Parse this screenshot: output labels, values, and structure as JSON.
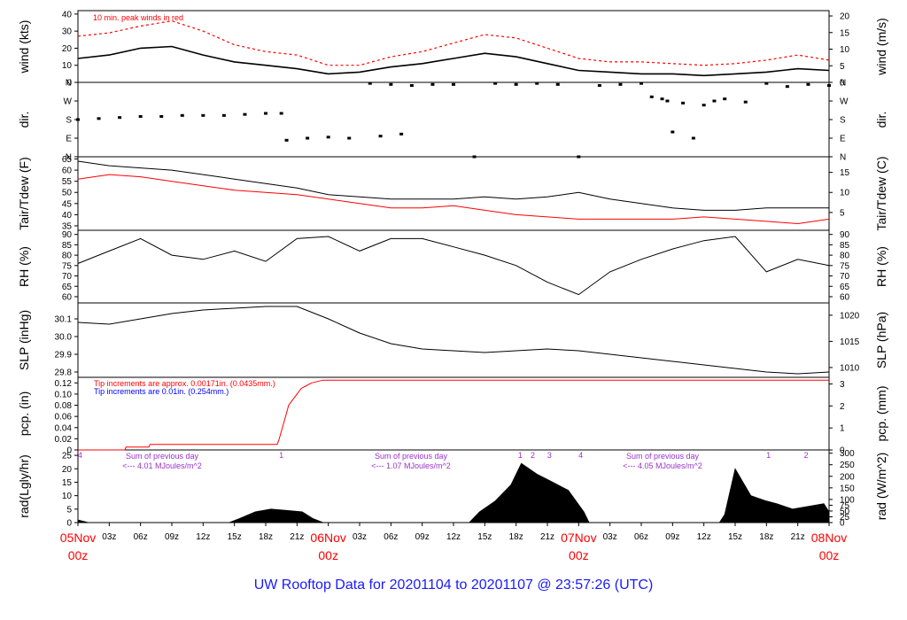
{
  "title": "UW Rooftop Data for 20201104  to  20201107 @ 23:57:26  (UTC)",
  "time_axis": {
    "hour_labels": [
      "03z",
      "06z",
      "09z",
      "12z",
      "15z",
      "18z",
      "21z"
    ],
    "day_labels": [
      {
        "date": "05Nov",
        "hour": "00z"
      },
      {
        "date": "06Nov",
        "hour": "00z"
      },
      {
        "date": "07Nov",
        "hour": "00z"
      },
      {
        "date": "08Nov",
        "hour": "00z"
      }
    ]
  },
  "colors": {
    "axis": "#000000",
    "peak": "#ff0000",
    "dew": "#ff0000",
    "tip_note_red": "#ff0000",
    "tip_note_blue": "#0000ff",
    "sum_note": "#9933cc",
    "day_label": "#ff0000",
    "title": "#1a1aff"
  },
  "panels": {
    "wind": {
      "left_label": "wind (kts)",
      "right_label": "wind (m/s)",
      "note": "10 min. peak winds in red",
      "left_ticks": [
        "0",
        "10",
        "20",
        "30",
        "40"
      ],
      "right_ticks": [
        "0",
        "5",
        "10",
        "15",
        "20"
      ]
    },
    "dir": {
      "left_label": "dir.",
      "right_label": "dir.",
      "ticks": [
        "N",
        "E",
        "S",
        "W",
        "N"
      ]
    },
    "temp": {
      "left_label": "Tair/Tdew (F)",
      "right_label": "Tair/Tdew (C)",
      "left_ticks": [
        "35",
        "40",
        "45",
        "50",
        "55",
        "60",
        "65"
      ],
      "right_ticks": [
        "5",
        "10",
        "15"
      ]
    },
    "rh": {
      "left_label": "RH (%)",
      "right_label": "RH (%)",
      "ticks": [
        "60",
        "65",
        "70",
        "75",
        "80",
        "85",
        "90"
      ]
    },
    "slp": {
      "left_label": "SLP (inHg)",
      "right_label": "SLP (hPa)",
      "left_ticks": [
        "29.8",
        "29.9",
        "30.0",
        "30.1"
      ],
      "right_ticks": [
        "1010",
        "1015",
        "1020"
      ]
    },
    "pcp": {
      "left_label": "pcp. (in)",
      "right_label": "pcp. (mm)",
      "left_ticks": [
        "0",
        "0.02",
        "0.04",
        "0.06",
        "0.08",
        "0.10",
        "0.12"
      ],
      "right_ticks": [
        "0",
        "1",
        "2",
        "3"
      ],
      "note1": "Tip increments are approx. 0.00171in. (0.0435mm.)",
      "note2": "Tip increments are 0.01in. (0.254mm.)"
    },
    "rad": {
      "left_label": "rad(Lgly/hr)",
      "right_label": "rad (W/m^2)",
      "left_ticks": [
        "0",
        "5",
        "10",
        "15",
        "20",
        "25"
      ],
      "right_ticks": [
        "0",
        "25",
        "50",
        "75",
        "100",
        "150",
        "200",
        "250",
        "300"
      ],
      "sum_title": "Sum of previous day",
      "sums": [
        "<--- 4.01 MJoules/m^2",
        "<--- 1.07 MJoules/m^2",
        "<--- 4.05 MJoules/m^2"
      ],
      "markers": [
        {
          "label": "4",
          "hour": 0.2
        },
        {
          "label": "1",
          "hour": 19.5
        },
        {
          "label": "1",
          "hour": 42.4
        },
        {
          "label": "2",
          "hour": 43.6
        },
        {
          "label": "3",
          "hour": 45.2
        },
        {
          "label": "4",
          "hour": 48.2
        },
        {
          "label": "1",
          "hour": 66.2
        },
        {
          "label": "2",
          "hour": 69.8
        }
      ]
    }
  },
  "chart_data": {
    "type": "line",
    "x_units": "hours since 2020-11-05 00z",
    "xlim": [
      0,
      72
    ],
    "series": [
      {
        "panel": "wind",
        "axis": "kts",
        "name": "10 min. peak winds in red",
        "x": [
          0,
          3,
          6,
          9,
          12,
          15,
          18,
          21,
          24,
          27,
          30,
          33,
          36,
          39,
          42,
          45,
          48,
          51,
          54,
          57,
          60,
          63,
          66,
          69,
          72
        ],
        "y": [
          27,
          29,
          33,
          36,
          30,
          22,
          18,
          16,
          10,
          10,
          15,
          18,
          23,
          28,
          26,
          20,
          14,
          12,
          12,
          11,
          10,
          11,
          13,
          16,
          13
        ]
      },
      {
        "panel": "wind",
        "axis": "kts",
        "x": [
          0,
          3,
          6,
          9,
          12,
          15,
          18,
          21,
          24,
          27,
          30,
          33,
          36,
          39,
          42,
          45,
          48,
          51,
          54,
          57,
          60,
          63,
          66,
          69,
          72
        ],
        "y": [
          14,
          16,
          20,
          21,
          16,
          12,
          10,
          8,
          5,
          6,
          9,
          11,
          14,
          17,
          15,
          11,
          7,
          6,
          5,
          5,
          4,
          5,
          6,
          8,
          7
        ]
      },
      {
        "panel": "temp",
        "axis": "F",
        "x": [
          0,
          3,
          6,
          9,
          12,
          15,
          18,
          21,
          24,
          27,
          30,
          33,
          36,
          39,
          42,
          45,
          48,
          51,
          54,
          57,
          60,
          63,
          66,
          69,
          72
        ],
        "y": [
          64,
          62,
          61,
          60,
          58,
          56,
          54,
          52,
          49,
          48,
          47,
          47,
          47,
          48,
          47,
          48,
          50,
          47,
          45,
          43,
          42,
          42,
          43,
          43,
          43
        ]
      },
      {
        "panel": "temp",
        "axis": "F",
        "x": [
          0,
          3,
          6,
          9,
          12,
          15,
          18,
          21,
          24,
          27,
          30,
          33,
          36,
          39,
          42,
          45,
          48,
          51,
          54,
          57,
          60,
          63,
          66,
          69,
          72
        ],
        "y": [
          56,
          58,
          57,
          55,
          53,
          51,
          50,
          49,
          47,
          45,
          43,
          43,
          44,
          42,
          40,
          39,
          38,
          38,
          38,
          38,
          39,
          38,
          37,
          36,
          38
        ]
      },
      {
        "panel": "rh",
        "axis": "%",
        "x": [
          0,
          3,
          6,
          9,
          12,
          15,
          18,
          21,
          24,
          27,
          30,
          33,
          36,
          39,
          42,
          45,
          48,
          51,
          54,
          57,
          60,
          63,
          66,
          69,
          72
        ],
        "y": [
          76,
          82,
          88,
          80,
          78,
          82,
          77,
          88,
          89,
          82,
          88,
          88,
          84,
          80,
          75,
          67,
          61,
          72,
          78,
          83,
          87,
          89,
          72,
          78,
          75
        ]
      },
      {
        "panel": "slp",
        "axis": "inHg",
        "x": [
          0,
          3,
          6,
          9,
          12,
          15,
          18,
          21,
          24,
          27,
          30,
          33,
          36,
          39,
          42,
          45,
          48,
          51,
          54,
          57,
          60,
          63,
          66,
          69,
          72
        ],
        "y": [
          30.08,
          30.07,
          30.1,
          30.13,
          30.15,
          30.16,
          30.17,
          30.17,
          30.1,
          30.02,
          29.96,
          29.93,
          29.92,
          29.91,
          29.92,
          29.93,
          29.92,
          29.9,
          29.88,
          29.86,
          29.84,
          29.82,
          29.8,
          29.79,
          29.8
        ]
      },
      {
        "panel": "pcp",
        "axis": "in",
        "x": [
          0,
          4.5,
          4.6,
          6.8,
          6.9,
          19.1,
          19.3,
          19.6,
          19.9,
          20.2,
          20.6,
          21.0,
          21.4,
          21.9,
          22.4,
          23.5,
          31,
          72
        ],
        "y": [
          0,
          0,
          0.005,
          0.005,
          0.01,
          0.01,
          0.02,
          0.04,
          0.06,
          0.08,
          0.09,
          0.1,
          0.11,
          0.115,
          0.12,
          0.125,
          0.125,
          0.125
        ]
      },
      {
        "panel": "rad",
        "axis": "Lgly/hr",
        "x": [
          0,
          0.5,
          1,
          14.5,
          15.5,
          17,
          18.5,
          20,
          21.5,
          22.5,
          23.5,
          37.5,
          38.5,
          40,
          41.5,
          42.5,
          44,
          45.5,
          47,
          48.5,
          49,
          61.5,
          62,
          63,
          64.5,
          66,
          67,
          68.5,
          70,
          71.5,
          72
        ],
        "y": [
          1,
          0.5,
          0,
          0,
          1.5,
          4,
          5,
          4.5,
          4,
          1.5,
          0,
          0,
          4,
          8,
          14,
          22,
          18,
          15,
          12,
          4,
          0,
          0,
          3,
          20,
          10,
          8,
          7,
          5,
          6,
          7,
          4
        ]
      }
    ],
    "dir_points": {
      "x": [
        0,
        2,
        4,
        6,
        8,
        10,
        12,
        14,
        16,
        18,
        19.5,
        20,
        22,
        24,
        26,
        28,
        29,
        30,
        31,
        32,
        34,
        36,
        38,
        40,
        42,
        44,
        46,
        48,
        50,
        52,
        54,
        55,
        56,
        56.5,
        57,
        58,
        59,
        60,
        61,
        62,
        64,
        66,
        68,
        70,
        72
      ],
      "y": [
        180,
        185,
        190,
        195,
        195,
        200,
        200,
        200,
        205,
        210,
        210,
        80,
        90,
        95,
        90,
        355,
        100,
        350,
        110,
        345,
        350,
        350,
        0,
        355,
        350,
        355,
        350,
        0,
        345,
        350,
        355,
        290,
        280,
        270,
        120,
        260,
        90,
        250,
        270,
        280,
        265,
        355,
        340,
        350,
        345
      ]
    }
  }
}
